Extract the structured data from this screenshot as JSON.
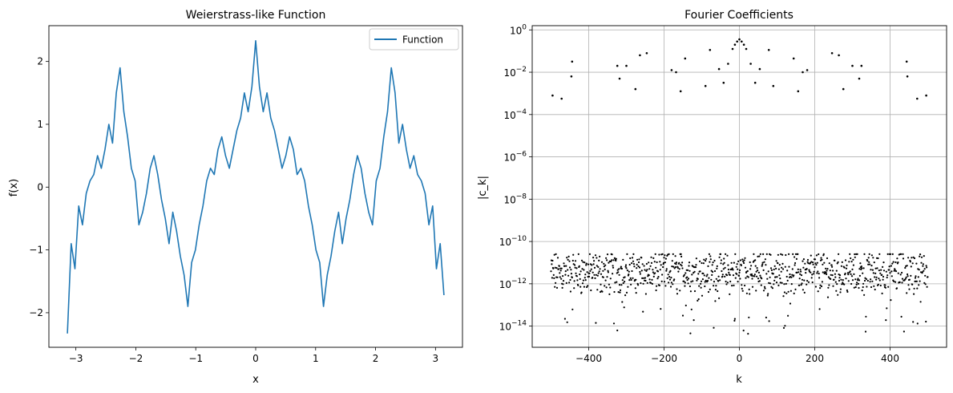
{
  "chart_data": [
    {
      "type": "line",
      "title": "Weierstrass-like Function",
      "xlabel": "x",
      "ylabel": "f(x)",
      "xlim": [
        -3.45,
        3.45
      ],
      "ylim": [
        -2.55,
        2.57
      ],
      "xticks": [
        -3,
        -2,
        -1,
        0,
        1,
        2,
        3
      ],
      "xtick_labels": [
        "−3",
        "−2",
        "−1",
        "0",
        "1",
        "2",
        "3"
      ],
      "yticks": [
        -2,
        -1,
        0,
        1,
        2
      ],
      "ytick_labels": [
        "−2",
        "−1",
        "0",
        "1",
        "2"
      ],
      "grid": false,
      "legend_position": "upper-right",
      "series": [
        {
          "name": "Function",
          "color": "#1f77b4",
          "x": [
            -3.1416,
            -3.0788,
            -3.0159,
            -2.9531,
            -2.8903,
            -2.8274,
            -2.7646,
            -2.7018,
            -2.6389,
            -2.5761,
            -2.5133,
            -2.4504,
            -2.3876,
            -2.3248,
            -2.2619,
            -2.1991,
            -2.1363,
            -2.0735,
            -2.0106,
            -1.9478,
            -1.885,
            -1.8221,
            -1.7593,
            -1.6965,
            -1.6336,
            -1.5708,
            -1.508,
            -1.4451,
            -1.3823,
            -1.3195,
            -1.2566,
            -1.1938,
            -1.131,
            -1.0681,
            -1.0053,
            -0.9425,
            -0.8796,
            -0.8168,
            -0.754,
            -0.6912,
            -0.6283,
            -0.5655,
            -0.5027,
            -0.4398,
            -0.377,
            -0.3142,
            -0.2513,
            -0.1885,
            -0.1257,
            -0.0628,
            0.0,
            0.0628,
            0.1257,
            0.1885,
            0.2513,
            0.3142,
            0.377,
            0.4398,
            0.5027,
            0.5655,
            0.6283,
            0.6912,
            0.754,
            0.8168,
            0.8796,
            0.9425,
            1.0053,
            1.0681,
            1.131,
            1.1938,
            1.2566,
            1.3195,
            1.3823,
            1.4451,
            1.508,
            1.5708,
            1.6336,
            1.6965,
            1.7593,
            1.8221,
            1.885,
            1.9478,
            2.0106,
            2.0735,
            2.1363,
            2.1991,
            2.2619,
            2.3248,
            2.3876,
            2.4504,
            2.5133,
            2.5761,
            2.6389,
            2.7018,
            2.7646,
            2.8274,
            2.8903,
            2.9531,
            3.0159,
            3.0788,
            3.1416
          ],
          "y": [
            -2.33,
            -0.9,
            -1.3,
            -0.3,
            -0.6,
            -0.1,
            0.1,
            0.2,
            0.5,
            0.3,
            0.6,
            1.0,
            0.7,
            1.5,
            1.9,
            1.2,
            0.8,
            0.3,
            0.1,
            -0.6,
            -0.4,
            -0.1,
            0.3,
            0.5,
            0.2,
            -0.2,
            -0.5,
            -0.9,
            -0.4,
            -0.7,
            -1.1,
            -1.4,
            -1.9,
            -1.2,
            -1.0,
            -0.6,
            -0.3,
            0.1,
            0.3,
            0.2,
            0.6,
            0.8,
            0.5,
            0.3,
            0.6,
            0.9,
            1.1,
            1.5,
            1.2,
            1.6,
            2.33,
            1.6,
            1.2,
            1.5,
            1.1,
            0.9,
            0.6,
            0.3,
            0.5,
            0.8,
            0.6,
            0.2,
            0.3,
            0.1,
            -0.3,
            -0.6,
            -1.0,
            -1.2,
            -1.9,
            -1.4,
            -1.1,
            -0.7,
            -0.4,
            -0.9,
            -0.5,
            -0.2,
            0.2,
            0.5,
            0.3,
            -0.1,
            -0.4,
            -0.6,
            0.1,
            0.3,
            0.8,
            1.2,
            1.9,
            1.5,
            0.7,
            1.0,
            0.6,
            0.3,
            0.5,
            0.2,
            0.1,
            -0.1,
            -0.6,
            -0.3,
            -1.3,
            -0.9,
            -1.72
          ]
        }
      ]
    },
    {
      "type": "scatter",
      "title": "Fourier Coefficients",
      "xlabel": "k",
      "ylabel": "|c_k|",
      "xlim": [
        -550,
        550
      ],
      "ylim_log10": [
        -15.0,
        0.2
      ],
      "yscale": "log",
      "xticks": [
        -400,
        -200,
        0,
        200,
        400
      ],
      "xtick_labels": [
        "−400",
        "−200",
        "0",
        "200",
        "400"
      ],
      "ytick_exponents": [
        0,
        -2,
        -4,
        -6,
        -8,
        -10,
        -12,
        -14
      ],
      "ytick_labels": [
        "10",
        "10",
        "10",
        "10",
        "10",
        "10",
        "10",
        "10"
      ],
      "ytick_label_exponents": [
        "0",
        "−2",
        "−4",
        "−6",
        "−8",
        "−10",
        "−12",
        "−14"
      ],
      "grid": true,
      "marker_color": "#000000",
      "noise_floor_log10": [
        -14.6,
        -10.6
      ],
      "series": [
        {
          "x": [
            0,
            -6,
            6,
            -12,
            12,
            -18,
            18,
            -30,
            30,
            -42,
            42,
            -54,
            54,
            -78,
            78,
            -90,
            90,
            -144,
            144,
            -156,
            156,
            -168,
            168,
            -180,
            180,
            -246,
            246,
            -264,
            264,
            -276,
            276,
            -300,
            300,
            -318,
            318,
            -324,
            324,
            -444,
            444,
            -446,
            446,
            -472,
            472,
            -496,
            496
          ],
          "y_log10": [
            -0.45,
            -0.55,
            -0.55,
            -0.7,
            -0.7,
            -0.9,
            -0.9,
            -1.6,
            -1.6,
            -2.5,
            -2.5,
            -1.85,
            -1.85,
            -0.95,
            -0.95,
            -2.65,
            -2.65,
            -1.35,
            -1.35,
            -2.9,
            -2.9,
            -2.0,
            -2.0,
            -1.9,
            -1.9,
            -1.1,
            -1.1,
            -1.2,
            -1.2,
            -2.8,
            -2.8,
            -1.7,
            -1.7,
            -2.3,
            -2.3,
            -1.7,
            -1.7,
            -1.5,
            -1.5,
            -2.2,
            -2.2,
            -3.25,
            -3.25,
            -3.1,
            -3.1
          ]
        }
      ]
    }
  ]
}
